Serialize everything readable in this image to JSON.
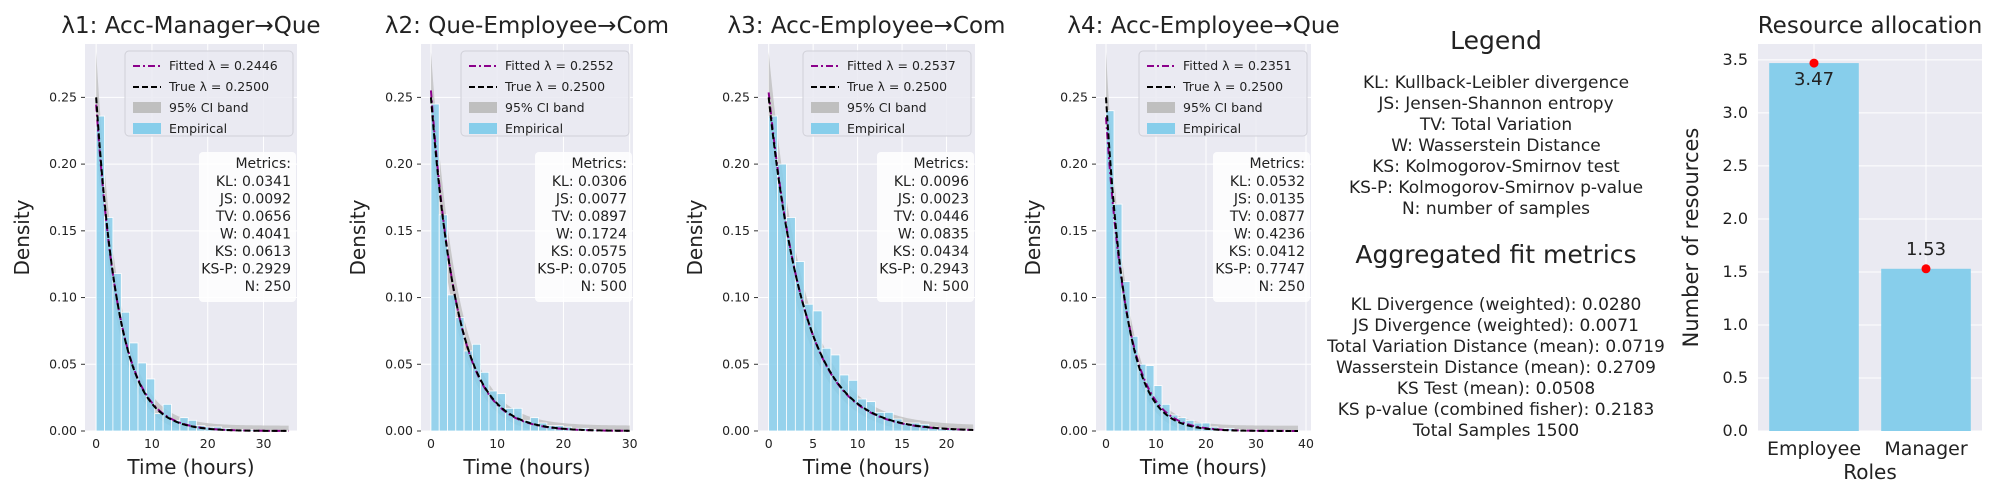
{
  "chart_data": [
    {
      "type": "histogram",
      "title": "λ1: Acc-Manager→Que",
      "xlabel": "Time (hours)",
      "ylabel": "Density",
      "xlim": [
        -2,
        36
      ],
      "ylim": [
        0,
        0.29
      ],
      "xticks": [
        0,
        10,
        20,
        30
      ],
      "yticks": [
        0.0,
        0.05,
        0.1,
        0.15,
        0.2,
        0.25
      ],
      "bin_edges": [
        0,
        1.5,
        3,
        4.5,
        6,
        7.5,
        9,
        10.5,
        12,
        13.5,
        15,
        16.5,
        18,
        19.5,
        21,
        22.5,
        24,
        25.5,
        27,
        28.5,
        30,
        31.5,
        33,
        34.5
      ],
      "empirical_density": [
        0.236,
        0.16,
        0.118,
        0.089,
        0.066,
        0.051,
        0.039,
        0.013,
        0.02,
        0.008,
        0.01,
        0.008,
        0.004,
        0.003,
        0.003,
        0.002,
        0.001,
        0.001,
        0.001,
        0.0005,
        0.0005,
        0.0003,
        0.0003
      ],
      "fitted_lambda": 0.2446,
      "true_lambda": 0.25,
      "legend": [
        "Fitted λ = 0.2446",
        "True λ = 0.2500",
        "95% CI band",
        "Empirical"
      ],
      "legend_position": "top-right",
      "metrics": {
        "header": "Metrics:",
        "lines": [
          "KL: 0.0341",
          "JS: 0.0092",
          "TV: 0.0656",
          "W: 0.4041",
          "KS: 0.0613",
          "KS-P: 0.2929",
          "N: 250"
        ]
      },
      "grid": true
    },
    {
      "type": "histogram",
      "title": "λ2: Que-Employee→Com",
      "xlabel": "Time (hours)",
      "ylabel": "Density",
      "xlim": [
        -1.5,
        30.5
      ],
      "ylim": [
        0,
        0.29
      ],
      "xticks": [
        0,
        10,
        20,
        30
      ],
      "yticks": [
        0.0,
        0.05,
        0.1,
        0.15,
        0.2,
        0.25
      ],
      "bin_edges": [
        0,
        1.25,
        2.5,
        3.75,
        5,
        6.25,
        7.5,
        8.75,
        10,
        11.25,
        12.5,
        13.75,
        15,
        16.25,
        17.5,
        18.75,
        20,
        21.25,
        22.5,
        23.75,
        25,
        26.25,
        27.5,
        28.75,
        30
      ],
      "empirical_density": [
        0.245,
        0.162,
        0.102,
        0.085,
        0.06,
        0.065,
        0.044,
        0.03,
        0.028,
        0.017,
        0.017,
        0.008,
        0.01,
        0.006,
        0.004,
        0.004,
        0.003,
        0.002,
        0.002,
        0.001,
        0.001,
        0.0008,
        0.0005,
        0.0003
      ],
      "fitted_lambda": 0.2552,
      "true_lambda": 0.25,
      "legend": [
        "Fitted λ = 0.2552",
        "True λ = 0.2500",
        "95% CI band",
        "Empirical"
      ],
      "legend_position": "top-right",
      "metrics": {
        "header": "Metrics:",
        "lines": [
          "KL: 0.0306",
          "JS: 0.0077",
          "TV: 0.0897",
          "W: 0.1724",
          "KS: 0.0575",
          "KS-P: 0.0705",
          "N: 500"
        ]
      },
      "grid": true
    },
    {
      "type": "histogram",
      "title": "λ3: Acc-Employee→Com",
      "xlabel": "Time (hours)",
      "ylabel": "Density",
      "xlim": [
        -1.2,
        23.2
      ],
      "ylim": [
        0,
        0.29
      ],
      "xticks": [
        0,
        5,
        10,
        15,
        20
      ],
      "yticks": [
        0.0,
        0.05,
        0.1,
        0.15,
        0.2,
        0.25
      ],
      "bin_edges": [
        0,
        1,
        2,
        3,
        4,
        5,
        6,
        7,
        8,
        9,
        10,
        11,
        12,
        13,
        14,
        15,
        16,
        17,
        18,
        19,
        20,
        21,
        22,
        23
      ],
      "empirical_density": [
        0.236,
        0.2,
        0.16,
        0.127,
        0.095,
        0.09,
        0.062,
        0.057,
        0.042,
        0.038,
        0.024,
        0.022,
        0.014,
        0.014,
        0.009,
        0.006,
        0.006,
        0.005,
        0.003,
        0.002,
        0.0015,
        0.001,
        0.0008
      ],
      "fitted_lambda": 0.2537,
      "true_lambda": 0.25,
      "legend": [
        "Fitted λ = 0.2537",
        "True λ = 0.2500",
        "95% CI band",
        "Empirical"
      ],
      "legend_position": "top-right",
      "metrics": {
        "header": "Metrics:",
        "lines": [
          "KL: 0.0096",
          "JS: 0.0023",
          "TV: 0.0446",
          "W: 0.0835",
          "KS: 0.0434",
          "KS-P: 0.2943",
          "N: 500"
        ]
      },
      "grid": true
    },
    {
      "type": "histogram",
      "title": "λ4: Acc-Employee→Que",
      "xlabel": "Time (hours)",
      "ylabel": "Density",
      "xlim": [
        -2,
        41
      ],
      "ylim": [
        0,
        0.29
      ],
      "xticks": [
        0,
        10,
        20,
        30,
        40
      ],
      "yticks": [
        0.0,
        0.05,
        0.1,
        0.15,
        0.2,
        0.25
      ],
      "bin_edges": [
        0,
        1.6,
        3.2,
        4.8,
        6.4,
        8,
        9.6,
        11.2,
        12.8,
        14.4,
        16,
        17.6,
        19.2,
        20.8,
        22.4,
        24,
        25.6,
        27.2,
        28.8,
        30.4,
        32,
        33.6,
        35.2,
        36.8,
        38.4
      ],
      "empirical_density": [
        0.24,
        0.17,
        0.112,
        0.071,
        0.05,
        0.049,
        0.034,
        0.02,
        0.012,
        0.01,
        0.008,
        0.006,
        0.006,
        0.003,
        0.002,
        0.002,
        0.001,
        0.001,
        0.001,
        0.0005,
        0.0005,
        0.0004,
        0.0003,
        0.0003
      ],
      "fitted_lambda": 0.2351,
      "true_lambda": 0.25,
      "legend": [
        "Fitted λ = 0.2351",
        "True λ = 0.2500",
        "95% CI band",
        "Empirical"
      ],
      "legend_position": "top-right",
      "metrics": {
        "header": "Metrics:",
        "lines": [
          "KL: 0.0532",
          "JS: 0.0135",
          "TV: 0.0877",
          "W: 0.4236",
          "KS: 0.0412",
          "KS-P: 0.7747",
          "N: 250"
        ]
      },
      "grid": true
    },
    {
      "type": "bar",
      "title": "Resource allocation",
      "xlabel": "Roles",
      "ylabel": "Number of resources",
      "categories": [
        "Employee",
        "Manager"
      ],
      "values": [
        3.47,
        1.53
      ],
      "value_labels": [
        "3.47",
        "1.53"
      ],
      "ylim": [
        0,
        3.65
      ],
      "yticks": [
        0.0,
        0.5,
        1.0,
        1.5,
        2.0,
        2.5,
        3.0,
        3.5
      ],
      "grid": true
    }
  ],
  "legend_panel": {
    "title": "Legend",
    "lines": [
      "KL:  Kullback-Leibler divergence",
      "JS:  Jensen-Shannon entropy",
      "TV:  Total Variation",
      "W:  Wasserstein Distance",
      "KS:  Kolmogorov-Smirnov test",
      "KS-P:  Kolmogorov-Smirnov p-value",
      "N:  number of samples"
    ],
    "aggregated_title": "Aggregated fit metrics",
    "aggregated_lines": [
      "KL Divergence (weighted): 0.0280",
      "JS Divergence (weighted): 0.0071",
      "Total Variation Distance (mean): 0.0719",
      "Wasserstein Distance (mean): 0.2709",
      "KS Test (mean): 0.0508",
      "KS p-value (combined fisher): 0.2183",
      "Total Samples 1500"
    ]
  },
  "colors": {
    "axes_bg": "#eaeaf2",
    "grid": "#ffffff",
    "empirical": "#87ceeb",
    "ci_band": "#bfbfbf",
    "fitted": "#8b008b",
    "true": "#000000",
    "dot": "#ff0000"
  }
}
